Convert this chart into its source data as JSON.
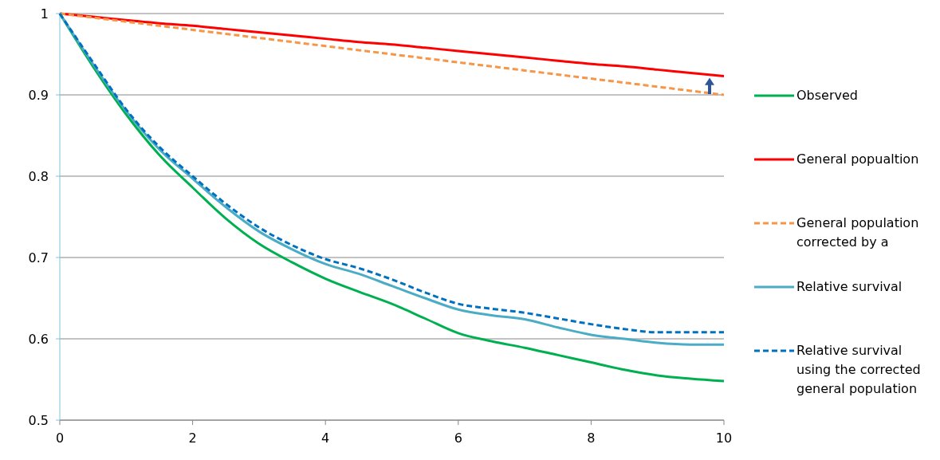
{
  "chart_data": {
    "type": "line",
    "x": [
      0,
      0.5,
      1,
      1.5,
      2,
      2.5,
      3,
      3.5,
      4,
      4.5,
      5,
      5.5,
      6,
      6.5,
      7,
      7.5,
      8,
      8.5,
      9,
      9.5,
      10
    ],
    "series": [
      {
        "name": "Observed",
        "color": "#00b050",
        "values": [
          1,
          0.935,
          0.876,
          0.826,
          0.786,
          0.748,
          0.717,
          0.694,
          0.674,
          0.658,
          0.643,
          0.625,
          0.607,
          0.597,
          0.589,
          0.58,
          0.571,
          0.562,
          0.555,
          0.551,
          0.548
        ]
      },
      {
        "name": "General popualtion",
        "color": "#ff0000",
        "values": [
          1,
          0.996,
          0.992,
          0.988,
          0.985,
          0.981,
          0.977,
          0.973,
          0.969,
          0.965,
          0.962,
          0.958,
          0.954,
          0.95,
          0.946,
          0.942,
          0.938,
          0.935,
          0.931,
          0.927,
          0.923
        ]
      },
      {
        "name": "General population corrected by a",
        "color": "#f79646",
        "line_style": "dashed",
        "values": [
          1,
          0.995,
          0.99,
          0.985,
          0.98,
          0.975,
          0.97,
          0.965,
          0.96,
          0.955,
          0.95,
          0.945,
          0.94,
          0.935,
          0.93,
          0.925,
          0.92,
          0.915,
          0.91,
          0.905,
          0.9
        ]
      },
      {
        "name": "Relative survival",
        "color": "#4bacc6",
        "values": [
          1,
          0.938,
          0.88,
          0.833,
          0.797,
          0.762,
          0.732,
          0.71,
          0.692,
          0.68,
          0.665,
          0.65,
          0.636,
          0.629,
          0.624,
          0.614,
          0.605,
          0.6,
          0.595,
          0.593,
          0.593
        ]
      },
      {
        "name": "Relative survival using the corrected general population",
        "color": "#0070c0",
        "line_style": "dashed",
        "values": [
          1,
          0.94,
          0.882,
          0.836,
          0.8,
          0.766,
          0.737,
          0.715,
          0.698,
          0.687,
          0.673,
          0.657,
          0.643,
          0.637,
          0.632,
          0.625,
          0.618,
          0.612,
          0.608,
          0.608,
          0.608
        ]
      }
    ],
    "xlim": [
      0,
      10
    ],
    "xticks": [
      0,
      2,
      4,
      6,
      8,
      10
    ],
    "ylim": [
      0.5,
      1
    ],
    "yticks": [
      0.5,
      0.6,
      0.7,
      0.8,
      0.9,
      1
    ],
    "grid": "y",
    "legend": "right",
    "marker": "none",
    "line_style": "solid"
  }
}
